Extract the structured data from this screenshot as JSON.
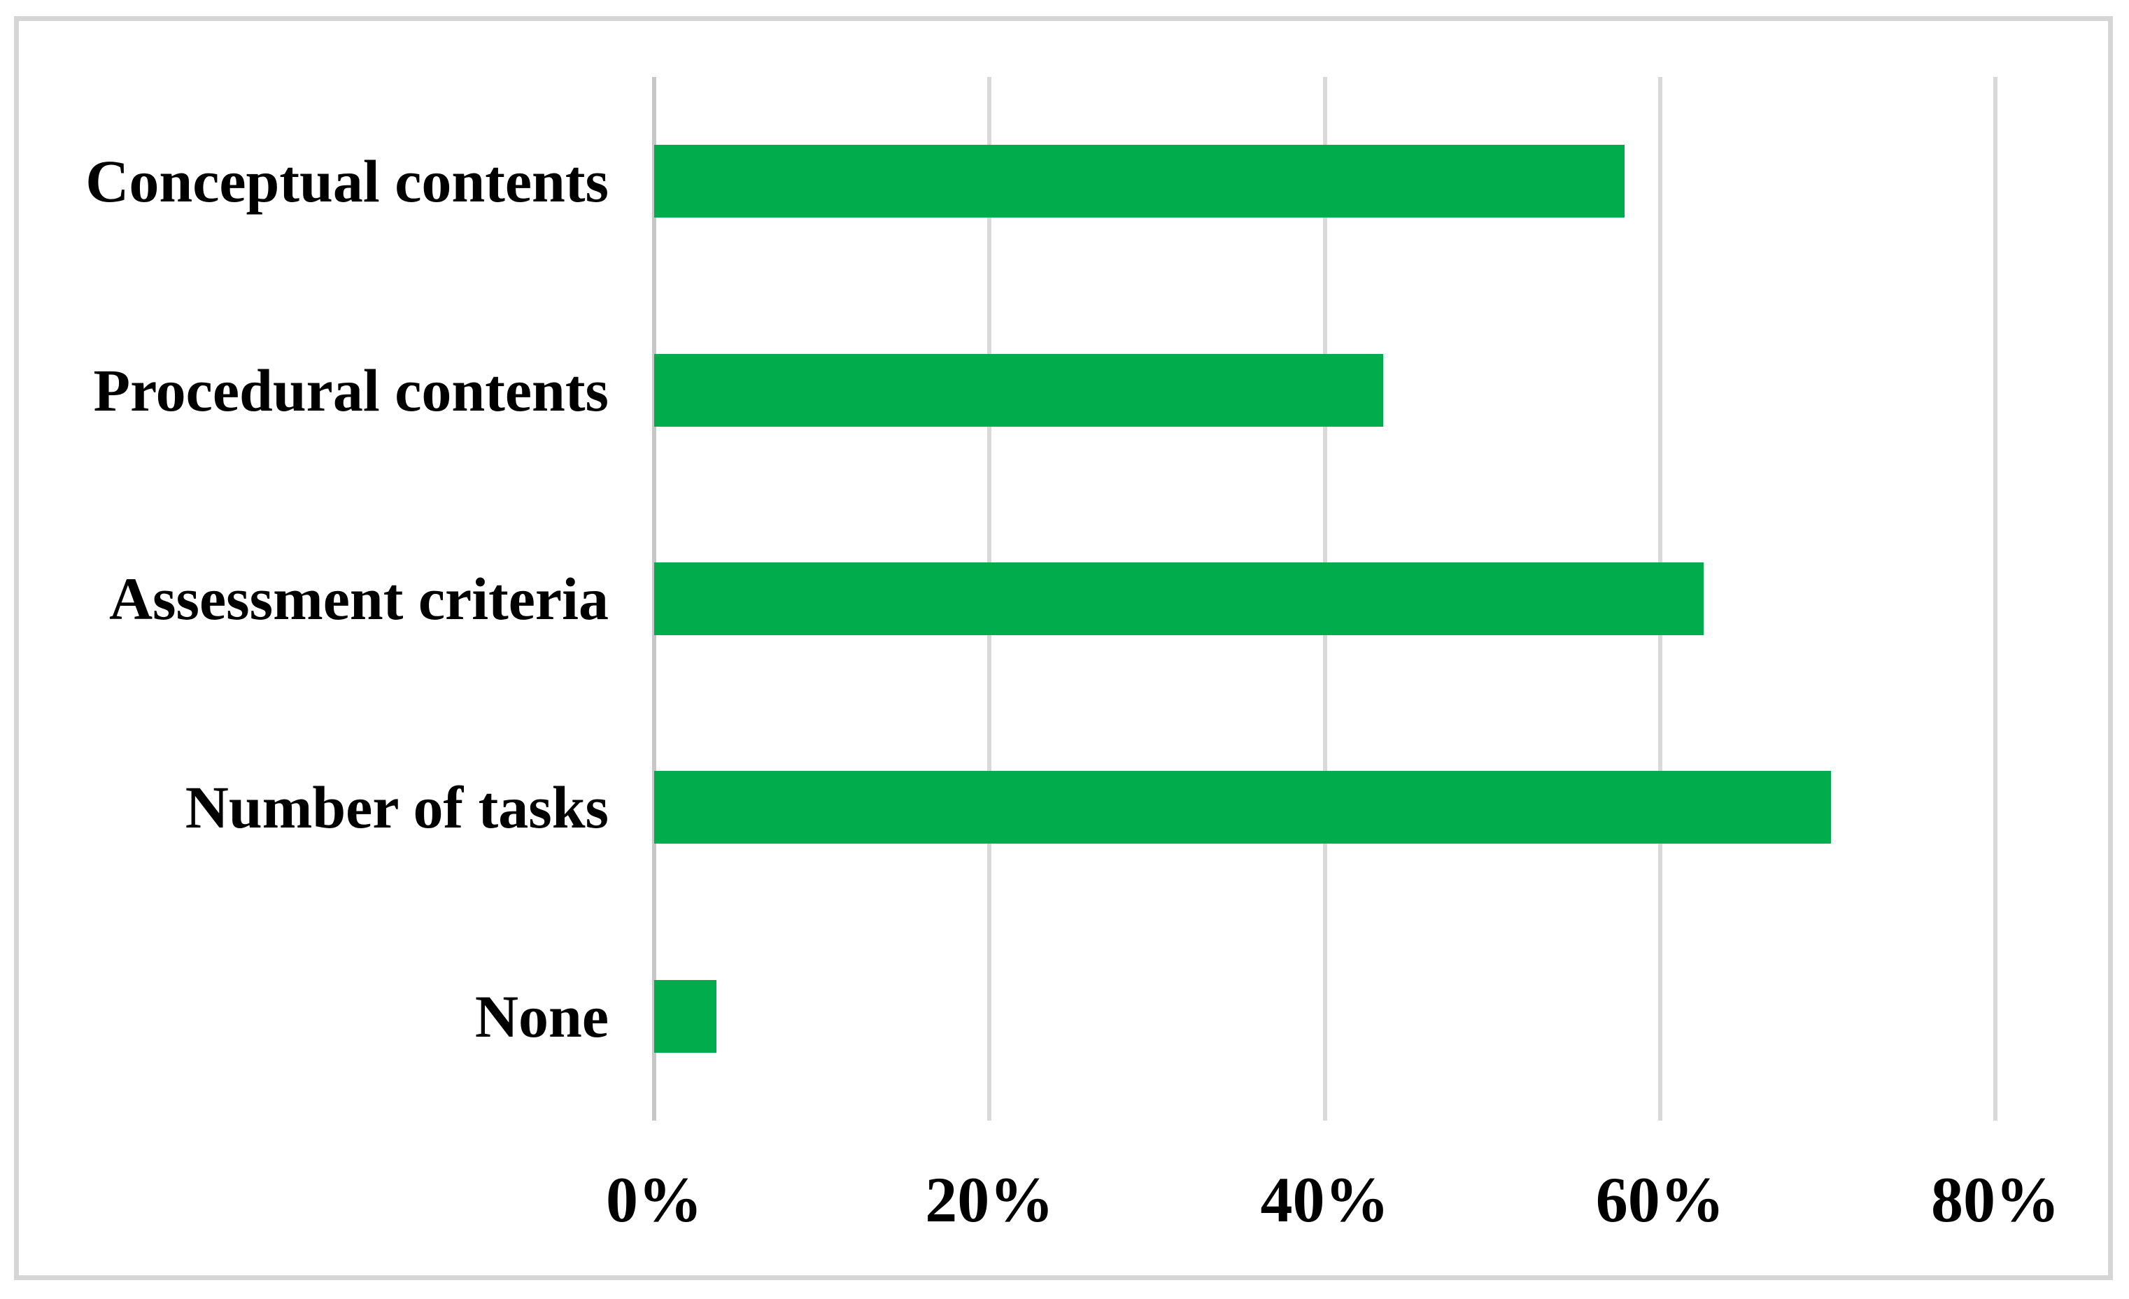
{
  "figure": {
    "background": "#ffffff",
    "border_color": "#d6d6d6"
  },
  "chart_data": {
    "type": "bar",
    "orientation": "horizontal",
    "title": "",
    "xlabel": "",
    "ylabel": "",
    "categories": [
      "Conceptual contents",
      "Procedural contents",
      "Assessment criteria",
      "Number of tasks",
      "None"
    ],
    "values": [
      57.9,
      43.5,
      62.6,
      70.2,
      3.7
    ],
    "value_unit": "percent",
    "xlim": [
      0,
      80
    ],
    "x_ticks": [
      "0%",
      "20%",
      "40%",
      "60%",
      "80%"
    ],
    "grid": "vertical",
    "legend_position": "none",
    "bar_color": "#00ac4b",
    "gridline_color": "#d9d9d9",
    "axis_line_color": "#c7c7c7",
    "text_color": "#000000"
  }
}
